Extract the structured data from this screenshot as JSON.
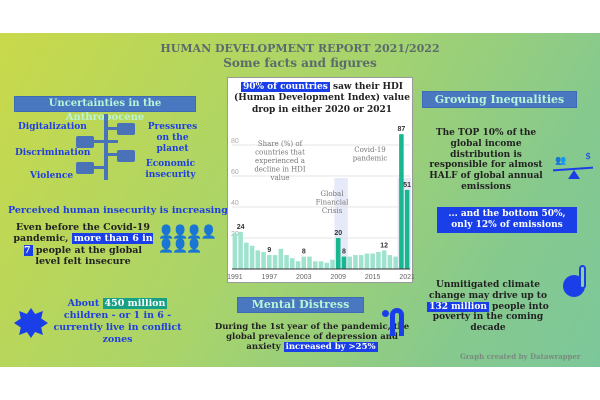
{
  "title": "HUMAN DEVELOPMENT REPORT 2021/2022",
  "subtitle": "Some facts and figures",
  "uncertainties": {
    "header": "Uncertainties in the Anthropocene",
    "items": [
      "Digitalization",
      "Discrimination",
      "Violence",
      "Pressures on the planet",
      "Economic insecurity"
    ]
  },
  "insecurity": {
    "header": "Perceived human insecurity is increasing",
    "pre": "Even before the Covid-19 pandemic,",
    "highlight": "more than 6 in 7",
    "post": "people at the global level felt insecure"
  },
  "children": {
    "pre": "About",
    "highlight": "450 million",
    "post": "children - or 1 in 6 - currently live in conflict zones"
  },
  "mental": {
    "header": "Mental Distress",
    "pre": "During the 1st year of the pandemic, the global prevalence of depression and anxiety",
    "highlight": "increased by >25%"
  },
  "inequalities": {
    "header": "Growing Inequalities",
    "text": "The TOP 10% of the global income distribution is responsible for almost HALF of global annual emissions",
    "bottom": "... and the bottom 50%, only 12% of emissions"
  },
  "climate": {
    "pre": "Unmitigated climate change may drive up to",
    "highlight": "132 million",
    "post": "people into poverty in the coming decade"
  },
  "credit": "Graph created by Datawrapper",
  "colors": {
    "light_bar": "#9fe3cf",
    "dark_bar": "#17b890",
    "accent": "#1a3fe8"
  },
  "chart_data": {
    "type": "bar",
    "title_highlight": "90% of countries",
    "title": "saw their HDI (Human Development Index) value drop in either 2020 or 2021",
    "ylabel": "Share (%) of countries that experienced a decline in HDI value",
    "ylim": [
      0,
      90
    ],
    "yticks": [
      20,
      40,
      60,
      80
    ],
    "xticks": [
      "1991",
      "1997",
      "2003",
      "2009",
      "2015",
      "2021"
    ],
    "x": [
      1991,
      1992,
      1993,
      1994,
      1995,
      1996,
      1997,
      1998,
      1999,
      2000,
      2001,
      2002,
      2003,
      2004,
      2005,
      2006,
      2007,
      2008,
      2009,
      2010,
      2011,
      2012,
      2013,
      2014,
      2015,
      2016,
      2017,
      2018,
      2019,
      2020,
      2021
    ],
    "values": [
      23,
      24,
      17,
      15,
      12,
      11,
      9,
      9,
      13,
      9,
      7,
      5,
      8,
      8,
      5,
      5,
      4,
      6,
      20,
      8,
      8,
      9,
      9,
      10,
      10,
      11,
      12,
      9,
      8,
      87,
      51
    ],
    "highlighted": [
      2009,
      2010,
      2020,
      2021
    ],
    "labels": {
      "1992": "24",
      "1997": "9",
      "2003": "8",
      "2009": "20",
      "2010": "8",
      "2017": "12",
      "2020": "87",
      "2021": "51"
    },
    "annotations": [
      "Global Financial Crisis",
      "Covid-19 pandemic"
    ]
  }
}
